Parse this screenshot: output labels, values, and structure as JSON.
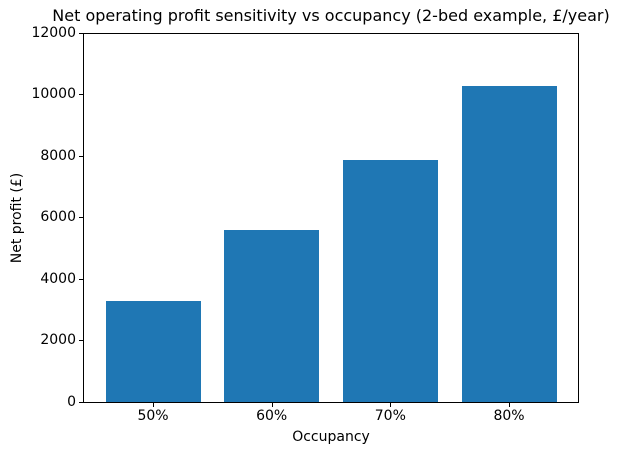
{
  "chart_data": {
    "type": "bar",
    "title": "Net operating profit sensitivity vs occupancy (2-bed example, £/year)",
    "xlabel": "Occupancy",
    "ylabel": "Net profit (£)",
    "categories": [
      "50%",
      "60%",
      "70%",
      "80%"
    ],
    "values": [
      3300,
      5600,
      7900,
      10300
    ],
    "ylim": [
      0,
      12000
    ],
    "yticks": [
      0,
      2000,
      4000,
      6000,
      8000,
      10000,
      12000
    ],
    "bar_color": "#1f77b4",
    "grid": false,
    "legend": null,
    "background_color": "#ffffff"
  }
}
